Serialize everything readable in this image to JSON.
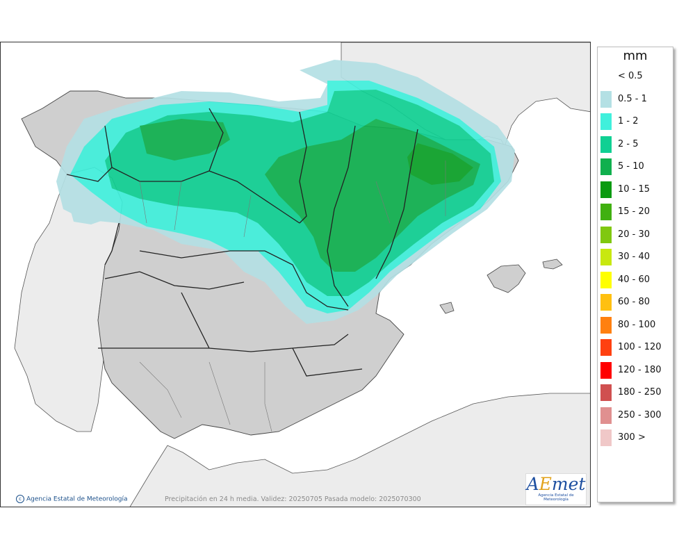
{
  "legend": {
    "unit": "mm",
    "items": [
      {
        "label": "< 0.5",
        "color": "#ffffff"
      },
      {
        "label": "0.5 - 1",
        "color": "#b4e0e4"
      },
      {
        "label": "1 - 2",
        "color": "#40f0dc"
      },
      {
        "label": "2 - 5",
        "color": "#10d093"
      },
      {
        "label": "5 - 10",
        "color": "#10b04e"
      },
      {
        "label": "10 - 15",
        "color": "#0a9a10"
      },
      {
        "label": "15 - 20",
        "color": "#40b010"
      },
      {
        "label": "20 - 30",
        "color": "#80c810"
      },
      {
        "label": "30 - 40",
        "color": "#c8e810"
      },
      {
        "label": "40 - 60",
        "color": "#ffff00"
      },
      {
        "label": "60 - 80",
        "color": "#ffc010"
      },
      {
        "label": "80 - 100",
        "color": "#ff8010"
      },
      {
        "label": "100 - 120",
        "color": "#ff4010"
      },
      {
        "label": "120 - 180",
        "color": "#ff0000"
      },
      {
        "label": "180 - 250",
        "color": "#d05050"
      },
      {
        "label": "250 - 300",
        "color": "#e09090"
      },
      {
        "label": "300 >",
        "color": "#f0c8c8"
      }
    ]
  },
  "footer": {
    "copyright": "Agencia Estatal de Meteorología",
    "caption": "Precipitación en 24 h media. Validez: 20250705 Pasada modelo: 2025070300"
  },
  "logo": {
    "word_a": "A",
    "word_b": "E",
    "word_c": "met",
    "subtitle": "Agencia Estatal de Meteorología"
  },
  "colors": {
    "sea": "#ffffff",
    "land_foreign": "#ececec",
    "land_spain": "#cfcfcf",
    "border": "#333333"
  }
}
